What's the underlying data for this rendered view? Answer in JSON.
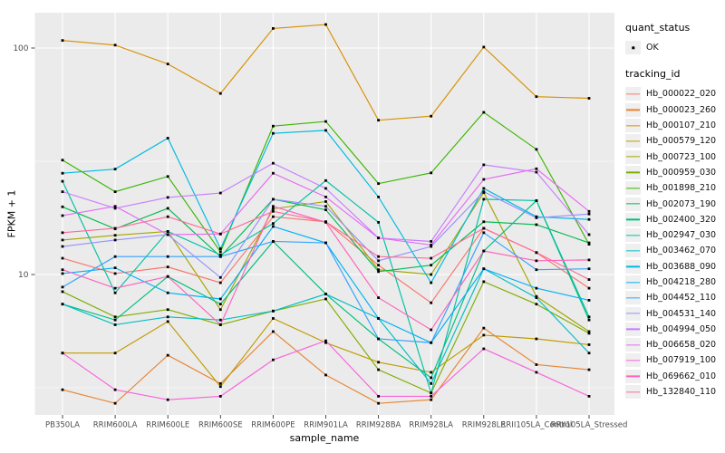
{
  "figure": {
    "panel_bg": "#EBEBEB",
    "grid_color": "#FFFFFF",
    "point_color": "#000000",
    "axis_text_color": "#4D4D4D",
    "tick_color": "#333333"
  },
  "legend": {
    "quant_title": "quant_status",
    "quant_items": [
      {
        "label": "OK",
        "symbol": "black-point"
      }
    ],
    "tracking_title": "tracking_id",
    "key_bg": "#EFEFEF"
  },
  "chart_data": {
    "type": "line",
    "title": "",
    "xlabel": "sample_name",
    "ylabel": "FPKM + 1",
    "y_scale": "log10",
    "y_ticks": [
      100,
      10
    ],
    "y_minor_breaks": [
      31.623,
      3.162
    ],
    "ylim": [
      2.3,
      145
    ],
    "grid": true,
    "legend_position": "right",
    "point_shape": "filled-square",
    "categories": [
      "PB350LA",
      "RRIM600LA",
      "RRIM600LE",
      "RRIM600SE",
      "RRIM600PE",
      "RRIM901LA",
      "RRIM928BA",
      "RRIM928LA",
      "RRIM928LE",
      "RRII105LA_Control",
      "RRII105LA_Stressed"
    ],
    "series": [
      {
        "name": "Hb_000022_020",
        "color": "#F8766D",
        "values": [
          11.8,
          10.1,
          10.8,
          9.2,
          18.0,
          17.1,
          11.0,
          7.5,
          16.0,
          12.5,
          8.7
        ]
      },
      {
        "name": "Hb_000023_260",
        "color": "#EA8331",
        "values": [
          3.1,
          2.7,
          4.4,
          3.3,
          5.6,
          3.6,
          2.7,
          2.8,
          5.8,
          4.0,
          3.8
        ]
      },
      {
        "name": "Hb_000107_210",
        "color": "#D89000",
        "values": [
          108,
          103,
          85,
          63,
          122,
          127,
          48,
          50,
          101,
          61,
          60
        ]
      },
      {
        "name": "Hb_000579_120",
        "color": "#C09B00",
        "values": [
          4.5,
          4.5,
          6.2,
          3.2,
          6.4,
          5.0,
          4.1,
          3.7,
          5.4,
          5.2,
          4.9
        ]
      },
      {
        "name": "Hb_000723_100",
        "color": "#A3A500",
        "values": [
          14.2,
          14.9,
          15.5,
          7.0,
          19.5,
          21.0,
          10.5,
          10.0,
          23.0,
          8.0,
          5.6
        ]
      },
      {
        "name": "Hb_000959_030",
        "color": "#7CAE00",
        "values": [
          8.4,
          6.5,
          7.0,
          6.0,
          6.9,
          7.8,
          3.8,
          3.0,
          9.3,
          7.4,
          5.5
        ]
      },
      {
        "name": "Hb_001898_210",
        "color": "#39B600",
        "values": [
          32,
          23.2,
          27.1,
          12.6,
          45.2,
          47.4,
          25.2,
          28.1,
          52,
          35.7,
          13.6
        ]
      },
      {
        "name": "Hb_002073_190",
        "color": "#00BB4E",
        "values": [
          19.9,
          15.9,
          19.6,
          12.0,
          21.5,
          19.3,
          10.3,
          11.0,
          17.1,
          16.6,
          13.8
        ]
      },
      {
        "name": "Hb_002400_320",
        "color": "#00BF7D",
        "values": [
          7.4,
          6.3,
          9.8,
          7.4,
          14.0,
          8.2,
          5.2,
          3.5,
          12.7,
          21.2,
          6.3
        ]
      },
      {
        "name": "Hb_002947_030",
        "color": "#00C1A3",
        "values": [
          25.8,
          8.3,
          15.5,
          12.2,
          16.8,
          26.0,
          17.0,
          3.0,
          21.5,
          21.2,
          6.5
        ]
      },
      {
        "name": "Hb_003462_070",
        "color": "#00BFC4",
        "values": [
          7.4,
          6.0,
          6.5,
          6.3,
          6.9,
          8.2,
          6.4,
          3.3,
          10.6,
          7.9,
          4.5
        ]
      },
      {
        "name": "Hb_003688_090",
        "color": "#00BAE0",
        "values": [
          28,
          29.2,
          40,
          13,
          42,
          43.3,
          22,
          9.2,
          24,
          18,
          17.5
        ]
      },
      {
        "name": "Hb_004218_280",
        "color": "#00B0F6",
        "values": [
          10.1,
          10.7,
          8.3,
          7.8,
          16.3,
          13.8,
          6.4,
          5.0,
          10.6,
          8.7,
          7.7
        ]
      },
      {
        "name": "Hb_004452_110",
        "color": "#35A2FF",
        "values": [
          8.8,
          12.0,
          12.0,
          12.0,
          14.0,
          13.8,
          5.2,
          5.0,
          15.3,
          10.5,
          10.6
        ]
      },
      {
        "name": "Hb_004531_140",
        "color": "#9590FF",
        "values": [
          13.3,
          14.2,
          15.0,
          9.7,
          21.5,
          20.0,
          11.5,
          13.3,
          23.2,
          17.8,
          18.5
        ]
      },
      {
        "name": "Hb_004994_050",
        "color": "#C77CFF",
        "values": [
          23.2,
          19.6,
          21.9,
          22.9,
          31.0,
          24.0,
          14.5,
          14.0,
          30.5,
          28.3,
          15.0
        ]
      },
      {
        "name": "Hb_006658_020",
        "color": "#E76BF3",
        "values": [
          18.2,
          20.0,
          15.0,
          15.1,
          28.0,
          22.0,
          14.5,
          13.5,
          26.3,
          29.3,
          19.0
        ]
      },
      {
        "name": "Hb_007919_100",
        "color": "#FA62DB",
        "values": [
          4.5,
          3.1,
          2.8,
          2.9,
          4.2,
          5.1,
          2.9,
          2.9,
          4.7,
          3.7,
          2.9
        ]
      },
      {
        "name": "Hb_069662_010",
        "color": "#FF62BC",
        "values": [
          10.5,
          8.7,
          9.8,
          6.0,
          20.0,
          17.0,
          7.9,
          5.7,
          12.7,
          11.5,
          11.6
        ]
      },
      {
        "name": "Hb_132840_110",
        "color": "#FF6A98",
        "values": [
          15.3,
          16.0,
          18.0,
          15.1,
          19.0,
          17.1,
          12.0,
          11.8,
          16.0,
          12.5,
          9.5
        ]
      }
    ]
  }
}
